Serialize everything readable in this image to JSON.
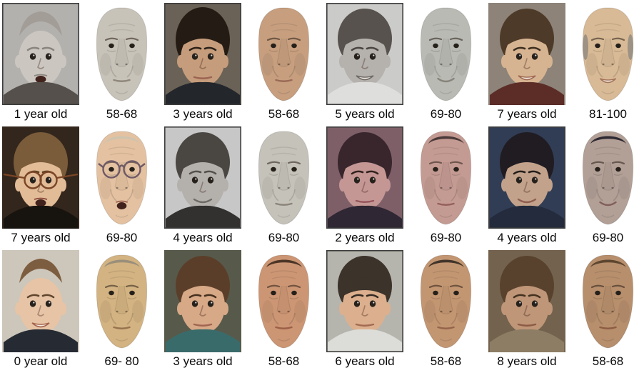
{
  "figure": {
    "name": "face-aging-results-grid",
    "background": "#ffffff",
    "rows": [
      {
        "cells": [
          {
            "label": "1 year old",
            "kind": "photo",
            "colors": {
              "bg": "#b3b1ae",
              "skin": "#cbc6c0",
              "hair": "#a39d97",
              "shirt": "#55504b",
              "lip": "#8c8680",
              "brow": "#8a847e"
            },
            "features": {
              "mouth": "open",
              "hairStyle": "sparse",
              "border": true
            }
          },
          {
            "label": "58-68",
            "kind": "render",
            "colors": {
              "skin": "#c8c3b9",
              "lip": "#8f867c"
            },
            "features": {
              "mouth": "neutral"
            }
          },
          {
            "label": "3 years old",
            "kind": "photo",
            "colors": {
              "bg": "#6b6257",
              "skin": "#c69d7c",
              "hair": "#241c14",
              "shirt": "#23262b",
              "lip": "#9c6352",
              "brow": "#2a2118"
            },
            "features": {
              "mouth": "neutral",
              "hairStyle": "curly",
              "border": true
            }
          },
          {
            "label": "58-68",
            "kind": "render",
            "colors": {
              "skin": "#c79f7f",
              "lip": "#9a6a56"
            },
            "features": {
              "mouth": "neutral"
            }
          },
          {
            "label": "5 years old",
            "kind": "photo",
            "colors": {
              "bg": "#cbcbc9",
              "skin": "#b5b1ad",
              "hair": "#57524d",
              "shirt": "#dededd",
              "lip": "#6f6a66",
              "brow": "#4a4540"
            },
            "features": {
              "mouth": "grin",
              "hairStyle": "cap",
              "border": true
            }
          },
          {
            "label": "69-80",
            "kind": "render",
            "colors": {
              "skin": "#b9bab3",
              "lip": "#87847c"
            },
            "features": {
              "mouth": "smile"
            }
          },
          {
            "label": "7 years old",
            "kind": "photo",
            "colors": {
              "bg": "#8d8379",
              "skin": "#d7b491",
              "hair": "#4e3a28",
              "shirt": "#5c2d27",
              "lip": "#a06a54",
              "brow": "#3c2d1e"
            },
            "features": {
              "mouth": "grin",
              "hairStyle": "cap",
              "border": false
            }
          },
          {
            "label": "81-100",
            "kind": "render",
            "colors": {
              "skin": "#d8ba96",
              "hair": "#9d9283",
              "lip": "#a5755c"
            },
            "features": {
              "mouth": "grin",
              "hairStyle": "sides"
            }
          }
        ]
      },
      {
        "cells": [
          {
            "label": "7 years old",
            "kind": "photo",
            "colors": {
              "bg": "#33261c",
              "skin": "#e2bb97",
              "hair": "#7a5c3a",
              "shirt": "#17130f",
              "lip": "#8a4a3c",
              "brow": "#5a4226"
            },
            "features": {
              "mouth": "open",
              "hairStyle": "messy",
              "border": false,
              "glasses": "#7a4526"
            }
          },
          {
            "label": "69-80",
            "kind": "render",
            "colors": {
              "skin": "#e4c2a1",
              "hair": "#cfc3ae",
              "lip": "#9c6250"
            },
            "features": {
              "mouth": "open",
              "hairStyle": "top",
              "glasses": "#6f5a66"
            }
          },
          {
            "label": "4 years old",
            "kind": "photo",
            "colors": {
              "bg": "#c7c7c7",
              "skin": "#b4b0ac",
              "hair": "#4a4642",
              "shirt": "#333130",
              "lip": "#6e6a66",
              "brow": "#55504c"
            },
            "features": {
              "mouth": "smile",
              "hairStyle": "cap",
              "border": true
            }
          },
          {
            "label": "69-80",
            "kind": "render",
            "colors": {
              "skin": "#c5c2b9",
              "lip": "#8b857b"
            },
            "features": {
              "mouth": "neutral"
            }
          },
          {
            "label": "2 years old",
            "kind": "photo",
            "colors": {
              "bg": "#7e5f68",
              "skin": "#c49795",
              "hair": "#38262c",
              "shirt": "#2f2733",
              "lip": "#96565c",
              "brow": "#32221f"
            },
            "features": {
              "mouth": "neutral",
              "hairStyle": "cap",
              "border": true
            }
          },
          {
            "label": "69-80",
            "kind": "render",
            "colors": {
              "skin": "#c49b93",
              "hair": "#4a3a3a",
              "lip": "#95605c"
            },
            "features": {
              "mouth": "neutral",
              "hairStyle": "top"
            }
          },
          {
            "label": "4 years old",
            "kind": "photo",
            "colors": {
              "bg": "#313d55",
              "skin": "#c2a28b",
              "hair": "#201c22",
              "shirt": "#232b3c",
              "lip": "#8f5e51",
              "brow": "#241e1c"
            },
            "features": {
              "mouth": "smile",
              "hairStyle": "cap",
              "border": true
            }
          },
          {
            "label": "69-80",
            "kind": "render",
            "colors": {
              "skin": "#b2a096",
              "hair": "#2e2a33",
              "lip": "#82605a"
            },
            "features": {
              "mouth": "smile",
              "hairStyle": "top"
            }
          }
        ]
      },
      {
        "cells": [
          {
            "label": "0 year old",
            "kind": "photo",
            "colors": {
              "bg": "#cdc6ba",
              "skin": "#e7c4a6",
              "hair": "#7d5d3f",
              "shirt": "#262b33",
              "lip": "#a5654f",
              "brow": "#5f452c"
            },
            "features": {
              "mouth": "grin",
              "hairStyle": "sparse",
              "border": false
            }
          },
          {
            "label": "69- 80",
            "kind": "render",
            "colors": {
              "skin": "#d3b382",
              "hair": "#9a8f7a",
              "lip": "#97724f"
            },
            "features": {
              "mouth": "neutral",
              "hairStyle": "top"
            }
          },
          {
            "label": "3 years old",
            "kind": "photo",
            "colors": {
              "bg": "#575a4b",
              "skin": "#d7a987",
              "hair": "#5b3e29",
              "shirt": "#3a6b6b",
              "lip": "#a06450",
              "brow": "#452f1e"
            },
            "features": {
              "mouth": "neutral",
              "hairStyle": "cap",
              "border": false
            }
          },
          {
            "label": "58-68",
            "kind": "render",
            "colors": {
              "skin": "#cc9674",
              "hair": "#4b3526",
              "lip": "#9c5f47"
            },
            "features": {
              "mouth": "neutral",
              "hairStyle": "top"
            }
          },
          {
            "label": "6 years old",
            "kind": "photo",
            "colors": {
              "bg": "#b5b5ad",
              "skin": "#dcb08e",
              "hair": "#3c332b",
              "shirt": "#dcdcd8",
              "lip": "#a26a52",
              "brow": "#332a22"
            },
            "features": {
              "mouth": "neutral",
              "hairStyle": "bowl",
              "border": true
            }
          },
          {
            "label": "58-68",
            "kind": "render",
            "colors": {
              "skin": "#c39672",
              "hair": "#41352a",
              "lip": "#95644a"
            },
            "features": {
              "mouth": "neutral",
              "hairStyle": "top"
            }
          },
          {
            "label": "8 years old",
            "kind": "photo",
            "colors": {
              "bg": "#73624e",
              "skin": "#bf9678",
              "hair": "#58422d",
              "shirt": "#8d7d64",
              "lip": "#8d5a44",
              "brow": "#43311f"
            },
            "features": {
              "mouth": "neutral",
              "hairStyle": "cap",
              "border": false
            }
          },
          {
            "label": "58-68",
            "kind": "render",
            "colors": {
              "skin": "#b78f6d",
              "hair": "#5d4630",
              "lip": "#8d5c42"
            },
            "features": {
              "mouth": "neutral",
              "hairStyle": "top"
            }
          }
        ]
      }
    ]
  }
}
